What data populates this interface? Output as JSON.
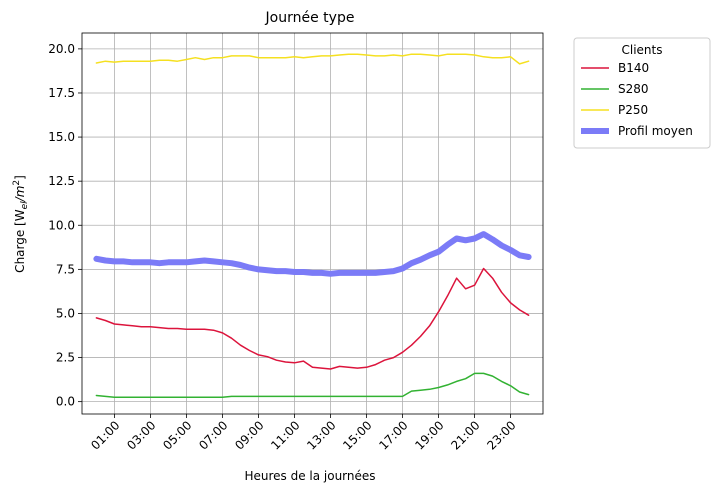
{
  "chart_data": {
    "type": "line",
    "title": "Journée type",
    "xlabel": "Heures de la journées",
    "ylabel": "Charge [W",
    "ylabel_sub": "el",
    "ylabel_mid": "/m",
    "ylabel_sup": "2",
    "ylabel_end": "]",
    "xlim": [
      -0.8,
      24.8
    ],
    "ylim": [
      -0.7,
      20.9
    ],
    "x_ticks": [
      1,
      3,
      5,
      7,
      9,
      11,
      13,
      15,
      17,
      19,
      21,
      23
    ],
    "x_tick_labels": [
      "01:00",
      "03:00",
      "05:00",
      "07:00",
      "09:00",
      "11:00",
      "13:00",
      "15:00",
      "17:00",
      "19:00",
      "21:00",
      "23:00"
    ],
    "y_ticks": [
      0.0,
      2.5,
      5.0,
      7.5,
      10.0,
      12.5,
      15.0,
      17.5,
      20.0
    ],
    "y_tick_labels": [
      "0.0",
      "2.5",
      "5.0",
      "7.5",
      "10.0",
      "12.5",
      "15.0",
      "17.5",
      "20.0"
    ],
    "grid": true,
    "legend": {
      "title": "Clients",
      "placement": "outside-top-right"
    },
    "series": [
      {
        "name": "B140",
        "color": "#dc143c",
        "width": 1.5,
        "x": [
          0,
          0.5,
          1,
          1.5,
          2,
          2.5,
          3,
          3.5,
          4,
          4.5,
          5,
          5.5,
          6,
          6.5,
          7,
          7.5,
          8,
          8.5,
          9,
          9.5,
          10,
          10.5,
          11,
          11.5,
          12,
          12.5,
          13,
          13.5,
          14,
          14.5,
          15,
          15.5,
          16,
          16.5,
          17,
          17.5,
          18,
          18.5,
          19,
          19.5,
          20,
          20.5,
          21,
          21.5,
          22,
          22.5,
          23,
          23.5,
          24
        ],
        "y": [
          4.75,
          4.6,
          4.4,
          4.35,
          4.3,
          4.25,
          4.25,
          4.2,
          4.15,
          4.15,
          4.1,
          4.1,
          4.1,
          4.05,
          3.9,
          3.6,
          3.2,
          2.9,
          2.65,
          2.55,
          2.35,
          2.25,
          2.2,
          2.3,
          1.95,
          1.9,
          1.85,
          2.0,
          1.95,
          1.9,
          1.95,
          2.1,
          2.35,
          2.5,
          2.8,
          3.2,
          3.7,
          4.3,
          5.1,
          6.0,
          7.0,
          6.4,
          6.6,
          7.55,
          7.0,
          6.2,
          5.6,
          5.2,
          4.9
        ]
      },
      {
        "name": "S280",
        "color": "#32b232",
        "width": 1.5,
        "x": [
          0,
          0.5,
          1,
          1.5,
          2,
          2.5,
          3,
          3.5,
          4,
          4.5,
          5,
          5.5,
          6,
          6.5,
          7,
          7.5,
          8,
          8.5,
          9,
          9.5,
          10,
          10.5,
          11,
          11.5,
          12,
          12.5,
          13,
          13.5,
          14,
          14.5,
          15,
          15.5,
          16,
          16.5,
          17,
          17.5,
          18,
          18.5,
          19,
          19.5,
          20,
          20.5,
          21,
          21.5,
          22,
          22.5,
          23,
          23.5,
          24
        ],
        "y": [
          0.35,
          0.3,
          0.25,
          0.25,
          0.25,
          0.25,
          0.25,
          0.25,
          0.25,
          0.25,
          0.25,
          0.25,
          0.25,
          0.25,
          0.25,
          0.3,
          0.3,
          0.3,
          0.3,
          0.3,
          0.3,
          0.3,
          0.3,
          0.3,
          0.3,
          0.3,
          0.3,
          0.3,
          0.3,
          0.3,
          0.3,
          0.3,
          0.3,
          0.3,
          0.3,
          0.6,
          0.65,
          0.7,
          0.8,
          0.95,
          1.15,
          1.3,
          1.6,
          1.6,
          1.45,
          1.15,
          0.9,
          0.55,
          0.4
        ]
      },
      {
        "name": "P250",
        "color": "#f5e020",
        "width": 1.5,
        "x": [
          0,
          0.5,
          1,
          1.5,
          2,
          2.5,
          3,
          3.5,
          4,
          4.5,
          5,
          5.5,
          6,
          6.5,
          7,
          7.5,
          8,
          8.5,
          9,
          9.5,
          10,
          10.5,
          11,
          11.5,
          12,
          12.5,
          13,
          13.5,
          14,
          14.5,
          15,
          15.5,
          16,
          16.5,
          17,
          17.5,
          18,
          18.5,
          19,
          19.5,
          20,
          20.5,
          21,
          21.5,
          22,
          22.5,
          23,
          23.5,
          24
        ],
        "y": [
          19.2,
          19.3,
          19.25,
          19.3,
          19.3,
          19.3,
          19.3,
          19.35,
          19.35,
          19.3,
          19.4,
          19.5,
          19.4,
          19.5,
          19.5,
          19.6,
          19.6,
          19.6,
          19.5,
          19.5,
          19.5,
          19.5,
          19.55,
          19.5,
          19.55,
          19.6,
          19.6,
          19.65,
          19.7,
          19.7,
          19.65,
          19.6,
          19.6,
          19.65,
          19.6,
          19.7,
          19.7,
          19.65,
          19.6,
          19.7,
          19.7,
          19.7,
          19.65,
          19.55,
          19.5,
          19.5,
          19.55,
          19.15,
          19.3
        ]
      },
      {
        "name": "Profil moyen",
        "color": "#7b7bf7",
        "width": 6,
        "x": [
          0,
          0.5,
          1,
          1.5,
          2,
          2.5,
          3,
          3.5,
          4,
          4.5,
          5,
          5.5,
          6,
          6.5,
          7,
          7.5,
          8,
          8.5,
          9,
          9.5,
          10,
          10.5,
          11,
          11.5,
          12,
          12.5,
          13,
          13.5,
          14,
          14.5,
          15,
          15.5,
          16,
          16.5,
          17,
          17.5,
          18,
          18.5,
          19,
          19.5,
          20,
          20.5,
          21,
          21.5,
          22,
          22.5,
          23,
          23.5,
          24
        ],
        "y": [
          8.1,
          8.0,
          7.95,
          7.95,
          7.9,
          7.9,
          7.9,
          7.85,
          7.9,
          7.9,
          7.9,
          7.95,
          8.0,
          7.95,
          7.9,
          7.85,
          7.75,
          7.6,
          7.5,
          7.45,
          7.4,
          7.4,
          7.35,
          7.35,
          7.3,
          7.3,
          7.25,
          7.3,
          7.3,
          7.3,
          7.3,
          7.3,
          7.35,
          7.4,
          7.55,
          7.85,
          8.05,
          8.3,
          8.5,
          8.9,
          9.25,
          9.15,
          9.25,
          9.5,
          9.2,
          8.85,
          8.6,
          8.3,
          8.2
        ]
      }
    ]
  }
}
